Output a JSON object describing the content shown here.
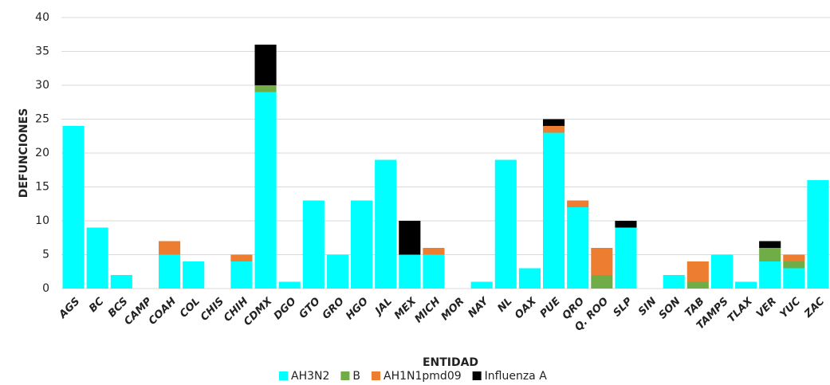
{
  "chart_data": {
    "type": "stacked_bar",
    "x_label": "ENTIDAD",
    "y_label": "DEFUNCIONES",
    "categories": [
      "AGS",
      "BC",
      "BCS",
      "CAMP",
      "COAH",
      "COL",
      "CHIS",
      "CHIH",
      "CDMX",
      "DGO",
      "GTO",
      "GRO",
      "HGO",
      "JAL",
      "MEX",
      "MICH",
      "MOR",
      "NAY",
      "NL",
      "OAX",
      "PUE",
      "QRO",
      "Q. ROO",
      "SLP",
      "SIN",
      "SON",
      "TAB",
      "TAMPS",
      "TLAX",
      "VER",
      "YUC",
      "ZAC"
    ],
    "series": [
      {
        "name": "AH3N2",
        "color": "#00ffff",
        "values": [
          24,
          9,
          2,
          0,
          5,
          4,
          0,
          4,
          29,
          1,
          13,
          5,
          13,
          19,
          5,
          5,
          0,
          1,
          19,
          3,
          23,
          12,
          0,
          9,
          0,
          2,
          0,
          5,
          1,
          4,
          3,
          16
        ]
      },
      {
        "name": "B",
        "color": "#70ad47",
        "values": [
          0,
          0,
          0,
          0,
          0,
          0,
          0,
          0,
          1,
          0,
          0,
          0,
          0,
          0,
          0,
          0,
          0,
          0,
          0,
          0,
          0,
          0,
          2,
          0,
          0,
          0,
          1,
          0,
          0,
          2,
          1,
          0
        ]
      },
      {
        "name": "AH1N1pmd09",
        "color": "#ed7d31",
        "values": [
          0,
          0,
          0,
          0,
          2,
          0,
          0,
          1,
          0,
          0,
          0,
          0,
          0,
          0,
          0,
          1,
          0,
          0,
          0,
          0,
          1,
          1,
          4,
          0,
          0,
          0,
          3,
          0,
          0,
          0,
          1,
          0
        ]
      },
      {
        "name": "Influenza A",
        "color": "#000000",
        "values": [
          0,
          0,
          0,
          0,
          0,
          0,
          0,
          0,
          6,
          0,
          0,
          0,
          0,
          0,
          5,
          0,
          0,
          0,
          0,
          0,
          1,
          0,
          0,
          1,
          0,
          0,
          0,
          0,
          0,
          1,
          0,
          0
        ]
      }
    ],
    "ylim": [
      0,
      40
    ],
    "yticks": [
      0,
      5,
      10,
      15,
      20,
      25,
      30,
      35,
      40
    ],
    "grid": true
  }
}
